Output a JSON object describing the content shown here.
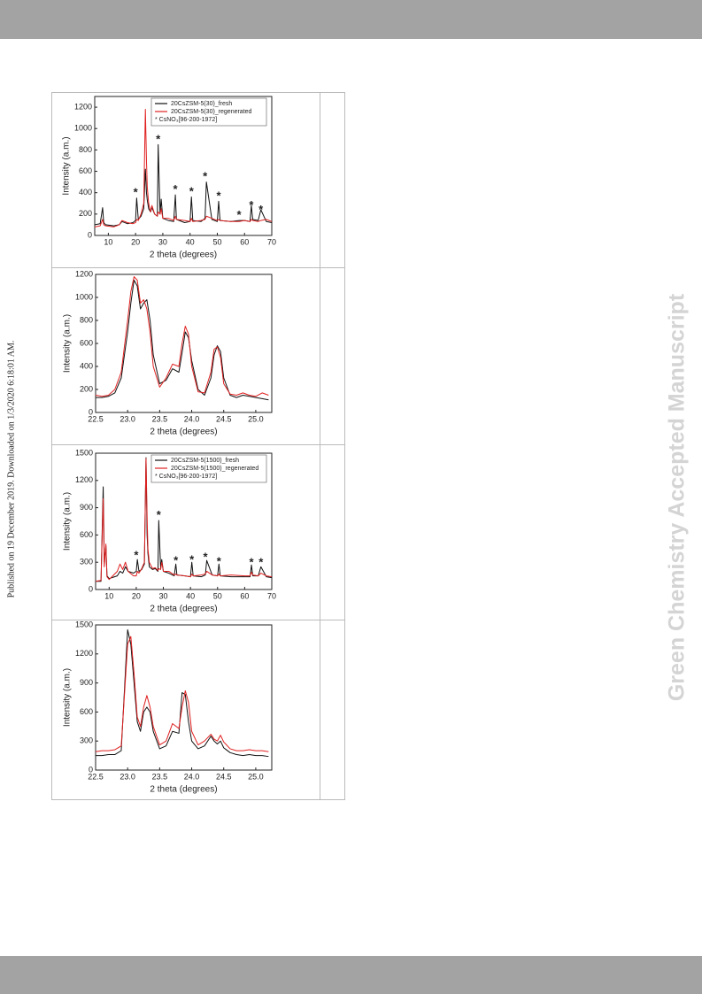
{
  "side_note": "Published on 19 December 2019. Downloaded on 1/3/2020 6:18:01 AM.",
  "watermark": "Green Chemistry Accepted Manuscript",
  "chart_data": [
    {
      "type": "line",
      "xlabel": "2 theta (degrees)",
      "ylabel": "Intensity (a.m.)",
      "x": [
        5,
        7,
        7.9,
        8.3,
        9,
        12,
        14,
        15,
        17,
        19,
        20,
        20.4,
        21,
        22,
        23,
        23.6,
        24,
        24.3,
        24.8,
        25.5,
        26,
        27,
        28,
        28.3,
        29,
        29.4,
        30,
        32,
        34,
        34.6,
        35,
        38,
        40,
        40.5,
        41,
        44,
        45.5,
        46,
        48,
        50,
        50.5,
        51,
        55,
        58,
        60,
        62,
        62.5,
        63,
        65,
        66,
        68,
        70
      ],
      "series": [
        {
          "name": "20CsZSM-5(30)_fresh",
          "color": "#111111",
          "values": [
            100,
            110,
            260,
            120,
            100,
            90,
            100,
            130,
            110,
            120,
            140,
            350,
            150,
            180,
            250,
            620,
            400,
            330,
            250,
            220,
            260,
            200,
            180,
            850,
            200,
            340,
            160,
            140,
            130,
            380,
            150,
            120,
            130,
            360,
            140,
            130,
            160,
            500,
            150,
            130,
            320,
            140,
            130,
            140,
            140,
            130,
            280,
            150,
            140,
            240,
            130,
            120
          ]
        },
        {
          "name": "20CsZSM-5(30)_regenerated",
          "color": "#e02020",
          "values": [
            80,
            90,
            150,
            100,
            90,
            80,
            100,
            140,
            120,
            110,
            120,
            150,
            140,
            200,
            300,
            1180,
            700,
            450,
            300,
            220,
            280,
            200,
            180,
            220,
            200,
            250,
            160,
            160,
            140,
            180,
            150,
            140,
            130,
            160,
            130,
            140,
            150,
            180,
            160,
            140,
            150,
            140,
            130,
            130,
            140,
            130,
            150,
            140,
            130,
            140,
            150,
            130
          ]
        }
      ],
      "legend_note": "* CsNO₃[96-200-1972]",
      "legend": "upper right",
      "annotations": [
        {
          "text": "*",
          "x": 20,
          "y": 420
        },
        {
          "text": "*",
          "x": 28.3,
          "y": 920
        },
        {
          "text": "*",
          "x": 34.6,
          "y": 450
        },
        {
          "text": "*",
          "x": 40.5,
          "y": 430
        },
        {
          "text": "*",
          "x": 45.5,
          "y": 570
        },
        {
          "text": "*",
          "x": 50.5,
          "y": 390
        },
        {
          "text": "*",
          "x": 58,
          "y": 210
        },
        {
          "text": "*",
          "x": 62.5,
          "y": 300
        },
        {
          "text": "*",
          "x": 66,
          "y": 260
        }
      ],
      "xlim": [
        5,
        70
      ],
      "ylim": [
        0,
        1300
      ],
      "xticks": [
        10,
        20,
        30,
        40,
        50,
        60,
        70
      ],
      "yticks": [
        0,
        200,
        400,
        600,
        800,
        1000,
        1200
      ]
    },
    {
      "type": "line",
      "xlabel": "2 theta (degrees)",
      "ylabel": "Intensity (a.m.)",
      "x": [
        22.5,
        22.6,
        22.7,
        22.8,
        22.9,
        23.0,
        23.05,
        23.1,
        23.15,
        23.2,
        23.25,
        23.3,
        23.35,
        23.4,
        23.5,
        23.6,
        23.7,
        23.8,
        23.85,
        23.9,
        23.95,
        24.0,
        24.1,
        24.2,
        24.3,
        24.35,
        24.4,
        24.45,
        24.5,
        24.6,
        24.7,
        24.8,
        24.9,
        25.0,
        25.1,
        25.2
      ],
      "series": [
        {
          "color": "#111111",
          "values": [
            130,
            130,
            140,
            170,
            300,
            700,
            950,
            1150,
            1100,
            900,
            950,
            980,
            800,
            500,
            250,
            280,
            380,
            350,
            520,
            700,
            650,
            450,
            200,
            150,
            300,
            500,
            580,
            530,
            300,
            150,
            130,
            150,
            140,
            130,
            120,
            110
          ]
        },
        {
          "color": "#e02020",
          "values": [
            150,
            140,
            150,
            200,
            350,
            800,
            1050,
            1180,
            1150,
            950,
            980,
            900,
            700,
            400,
            220,
            300,
            420,
            400,
            600,
            750,
            680,
            400,
            180,
            170,
            350,
            550,
            570,
            480,
            250,
            160,
            150,
            170,
            150,
            140,
            170,
            150
          ]
        }
      ],
      "xlim": [
        22.5,
        25.25
      ],
      "ylim": [
        0,
        1200
      ],
      "xticks": [
        22.5,
        {
          "value": 23,
          "label": "23.0"
        },
        23.5,
        {
          "value": 24,
          "label": "24.0"
        },
        24.5,
        {
          "value": 25,
          "label": "25.0"
        }
      ],
      "yticks": [
        0,
        200,
        400,
        600,
        800,
        1000,
        1200
      ]
    },
    {
      "type": "line",
      "xlabel": "2 theta (degrees)",
      "ylabel": "Intensity (a.m.)",
      "x": [
        5,
        7,
        7.8,
        8.2,
        8.8,
        9.2,
        10,
        13,
        14,
        15,
        16,
        17,
        19,
        20,
        20.4,
        21,
        22,
        23,
        23.6,
        24,
        24.3,
        24.8,
        26,
        27,
        28,
        28.3,
        29,
        29.4,
        30,
        32,
        34,
        34.6,
        35,
        38,
        40,
        40.5,
        41,
        44,
        45.5,
        46,
        48,
        50,
        50.5,
        51,
        55,
        60,
        62,
        62.5,
        63,
        65,
        66,
        68,
        70
      ],
      "series": [
        {
          "name": "20CsZSM-5(1500)_fresh",
          "color": "#111111",
          "values": [
            90,
            90,
            1130,
            300,
            480,
            150,
            120,
            150,
            200,
            180,
            250,
            200,
            180,
            200,
            330,
            200,
            220,
            280,
            1450,
            600,
            400,
            250,
            220,
            230,
            200,
            760,
            230,
            330,
            200,
            180,
            150,
            280,
            160,
            150,
            140,
            300,
            150,
            140,
            160,
            320,
            160,
            150,
            280,
            150,
            140,
            140,
            140,
            270,
            150,
            150,
            250,
            140,
            130
          ]
        },
        {
          "name": "20CsZSM-5(1500)_regenerated",
          "color": "#e02020",
          "values": [
            90,
            100,
            1000,
            250,
            500,
            140,
            110,
            200,
            280,
            220,
            300,
            200,
            150,
            150,
            200,
            180,
            230,
            300,
            1440,
            800,
            450,
            300,
            230,
            240,
            210,
            230,
            220,
            300,
            200,
            200,
            160,
            170,
            160,
            150,
            140,
            170,
            150,
            160,
            170,
            200,
            160,
            150,
            170,
            150,
            160,
            150,
            150,
            190,
            160,
            150,
            180,
            150,
            140
          ]
        }
      ],
      "legend_note": "* CsNO₃[96-200-1972]",
      "legend": "upper right",
      "annotations": [
        {
          "text": "*",
          "x": 20,
          "y": 400
        },
        {
          "text": "*",
          "x": 28.3,
          "y": 840
        },
        {
          "text": "*",
          "x": 34.6,
          "y": 340
        },
        {
          "text": "*",
          "x": 40.5,
          "y": 350
        },
        {
          "text": "*",
          "x": 45.5,
          "y": 380
        },
        {
          "text": "*",
          "x": 50.5,
          "y": 330
        },
        {
          "text": "*",
          "x": 62.5,
          "y": 320
        },
        {
          "text": "*",
          "x": 66,
          "y": 320
        }
      ],
      "xlim": [
        5,
        70
      ],
      "ylim": [
        0,
        1500
      ],
      "xticks": [
        10,
        20,
        30,
        40,
        50,
        60,
        70
      ],
      "yticks": [
        0,
        300,
        600,
        900,
        1200,
        1500
      ]
    },
    {
      "type": "line",
      "xlabel": "2 theta (degrees)",
      "ylabel": "Intensity (a.m.)",
      "x": [
        22.5,
        22.6,
        22.7,
        22.8,
        22.9,
        23.0,
        23.05,
        23.1,
        23.15,
        23.2,
        23.25,
        23.3,
        23.35,
        23.4,
        23.5,
        23.6,
        23.7,
        23.8,
        23.85,
        23.9,
        23.95,
        24.0,
        24.1,
        24.2,
        24.3,
        24.35,
        24.4,
        24.45,
        24.5,
        24.6,
        24.7,
        24.8,
        24.9,
        25.0,
        25.1,
        25.2
      ],
      "series": [
        {
          "color": "#111111",
          "values": [
            150,
            150,
            160,
            160,
            200,
            1450,
            1300,
            900,
            500,
            400,
            600,
            650,
            600,
            400,
            220,
            250,
            400,
            380,
            800,
            780,
            500,
            300,
            220,
            250,
            350,
            300,
            270,
            300,
            230,
            180,
            160,
            150,
            160,
            150,
            150,
            140
          ]
        },
        {
          "color": "#e02020",
          "values": [
            190,
            200,
            200,
            210,
            250,
            1300,
            1380,
            1000,
            550,
            450,
            650,
            770,
            650,
            450,
            260,
            300,
            480,
            430,
            650,
            820,
            700,
            400,
            260,
            300,
            370,
            320,
            300,
            360,
            290,
            220,
            200,
            200,
            210,
            200,
            200,
            190
          ]
        }
      ],
      "xlim": [
        22.5,
        25.25
      ],
      "ylim": [
        0,
        1500
      ],
      "xticks": [
        22.5,
        {
          "value": 23,
          "label": "23.0"
        },
        23.5,
        {
          "value": 24,
          "label": "24.0"
        },
        24.5,
        {
          "value": 25,
          "label": "25.0"
        }
      ],
      "yticks": [
        0,
        300,
        600,
        900,
        1200,
        1500
      ]
    }
  ]
}
